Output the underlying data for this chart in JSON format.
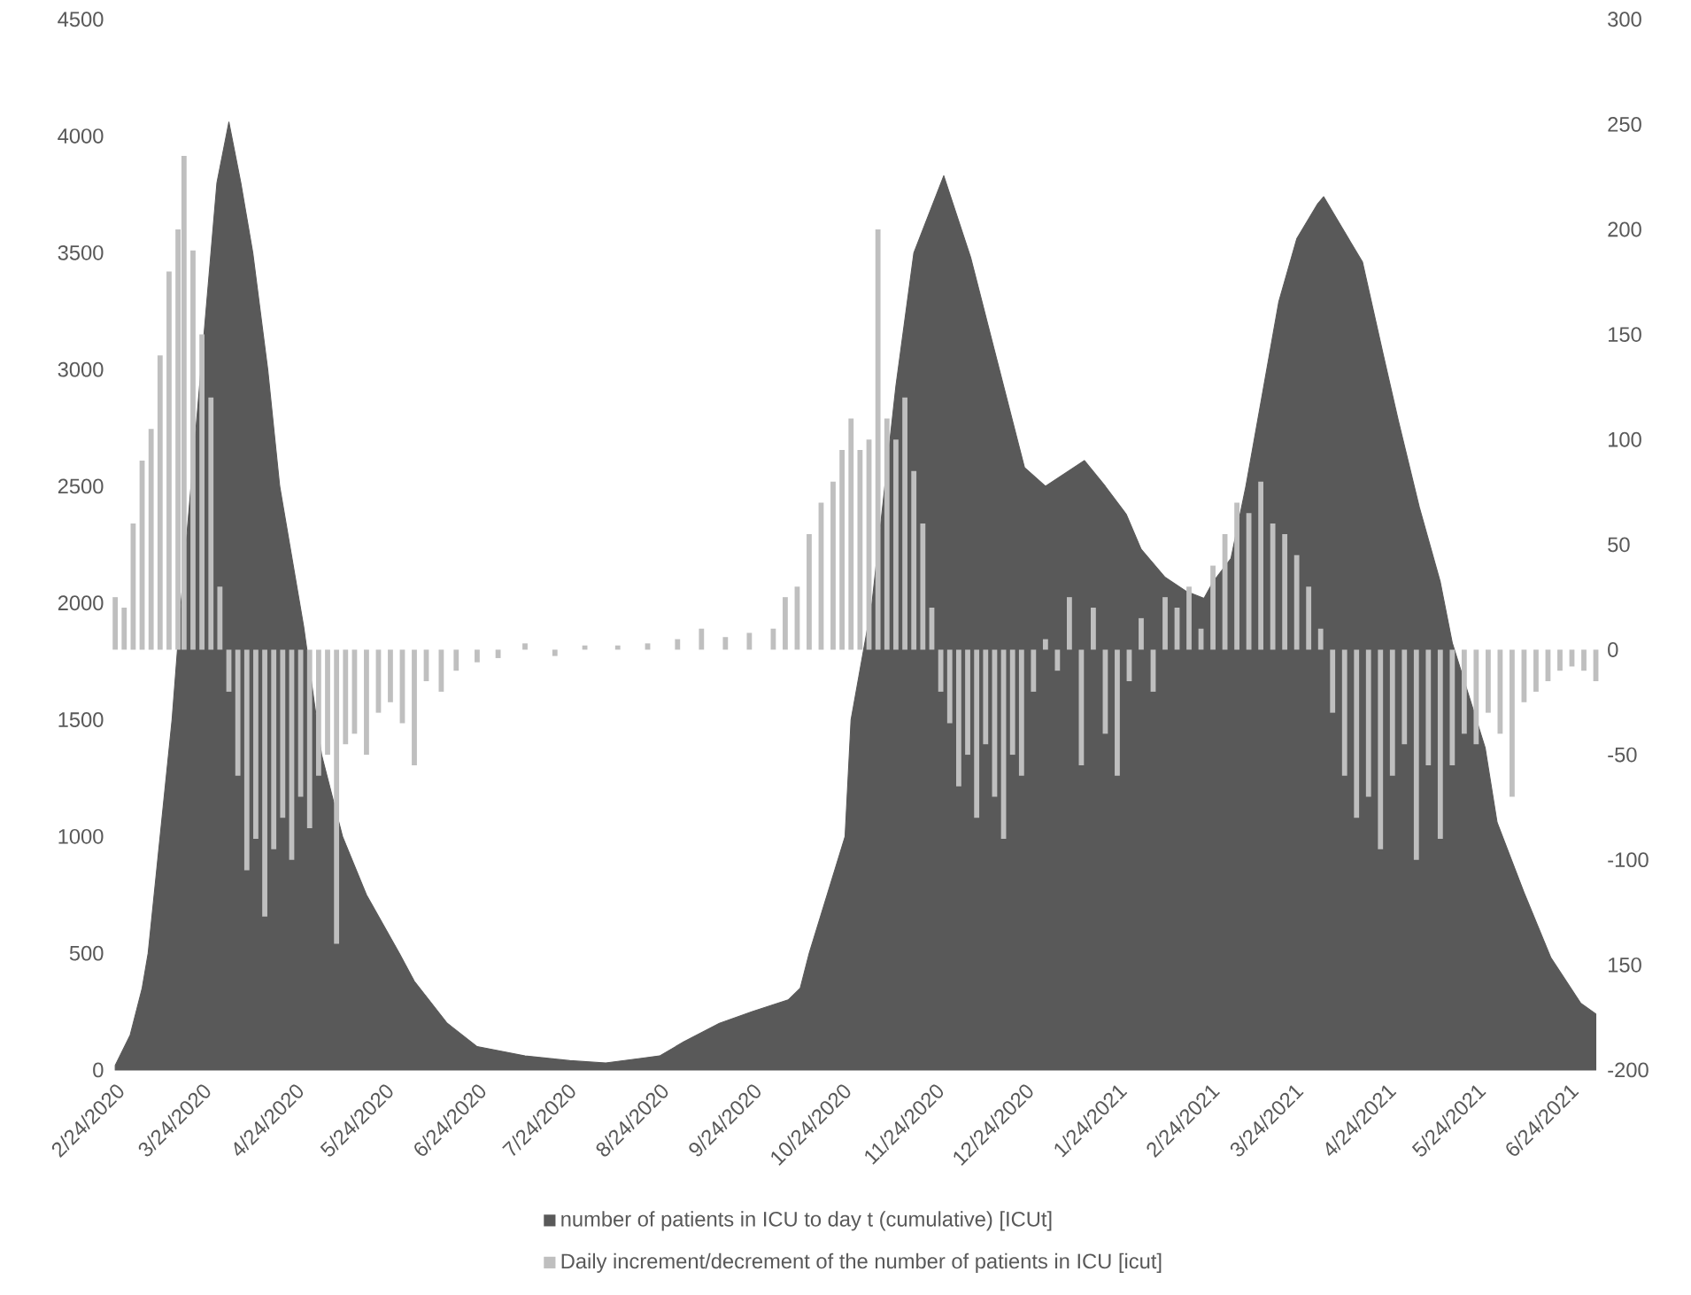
{
  "chart_data": {
    "type": "bar",
    "legend": "bottom",
    "xlim": [
      "2020-02-23",
      "2021-07-04"
    ],
    "xticks": [
      {
        "value": "2020-02-24",
        "label": "2/24/2020"
      },
      {
        "value": "2020-03-24",
        "label": "3/24/2020"
      },
      {
        "value": "2020-04-24",
        "label": "4/24/2020"
      },
      {
        "value": "2020-05-24",
        "label": "5/24/2020"
      },
      {
        "value": "2020-06-24",
        "label": "6/24/2020"
      },
      {
        "value": "2020-07-24",
        "label": "7/24/2020"
      },
      {
        "value": "2020-08-24",
        "label": "8/24/2020"
      },
      {
        "value": "2020-09-24",
        "label": "9/24/2020"
      },
      {
        "value": "2020-10-24",
        "label": "10/24/2020"
      },
      {
        "value": "2020-11-24",
        "label": "11/24/2020"
      },
      {
        "value": "2020-12-24",
        "label": "12/24/2020"
      },
      {
        "value": "2021-01-24",
        "label": "1/24/2021"
      },
      {
        "value": "2021-02-24",
        "label": "2/24/2021"
      },
      {
        "value": "2021-03-24",
        "label": "3/24/2021"
      },
      {
        "value": "2021-04-24",
        "label": "4/24/2021"
      },
      {
        "value": "2021-05-24",
        "label": "5/24/2021"
      },
      {
        "value": "2021-06-24",
        "label": "6/24/2021"
      }
    ],
    "ylim": [
      0,
      4500
    ],
    "yticks": [
      0,
      500,
      1000,
      1500,
      2000,
      2500,
      3000,
      3500,
      4000,
      4500
    ],
    "y2lim": [
      -200,
      300
    ],
    "y2ticks": [
      -200,
      {
        "value": -150,
        "label": "150"
      },
      -100,
      -50,
      0,
      50,
      100,
      150,
      200,
      250,
      300
    ],
    "series": [
      {
        "name": "number of patients in ICU to day t (cumulative) [ICUt]",
        "type": "area",
        "color": "#595959",
        "x": [
          "2020-02-24",
          "2020-02-29",
          "2020-03-04",
          "2020-03-06",
          "2020-03-10",
          "2020-03-14",
          "2020-03-17",
          "2020-03-21",
          "2020-03-25",
          "2020-03-29",
          "2020-04-02",
          "2020-04-06",
          "2020-04-10",
          "2020-04-15",
          "2020-04-19",
          "2020-04-27",
          "2020-05-03",
          "2020-05-10",
          "2020-05-18",
          "2020-05-29",
          "2020-06-03",
          "2020-06-14",
          "2020-06-24",
          "2020-07-10",
          "2020-07-25",
          "2020-08-06",
          "2020-08-18",
          "2020-08-24",
          "2020-09-01",
          "2020-09-13",
          "2020-09-24",
          "2020-10-06",
          "2020-10-10",
          "2020-10-13",
          "2020-10-19",
          "2020-10-25",
          "2020-10-27",
          "2020-11-03",
          "2020-11-11",
          "2020-11-17",
          "2020-11-27",
          "2020-12-06",
          "2020-12-14",
          "2020-12-20",
          "2020-12-24",
          "2020-12-31",
          "2021-01-13",
          "2021-01-20",
          "2021-01-27",
          "2021-02-01",
          "2021-02-09",
          "2021-02-16",
          "2021-02-22",
          "2021-02-25",
          "2021-03-03",
          "2021-03-08",
          "2021-03-14",
          "2021-03-19",
          "2021-03-25",
          "2021-04-01",
          "2021-04-03",
          "2021-04-16",
          "2021-04-23",
          "2021-04-28",
          "2021-05-05",
          "2021-05-12",
          "2021-05-16",
          "2021-05-27",
          "2021-05-31",
          "2021-06-09",
          "2021-06-18",
          "2021-06-28",
          "2021-07-03"
        ],
        "values": [
          20,
          150,
          350,
          500,
          1000,
          1500,
          2000,
          2600,
          3200,
          3800,
          4060,
          3800,
          3500,
          3000,
          2500,
          1900,
          1350,
          1000,
          750,
          500,
          380,
          200,
          100,
          60,
          40,
          30,
          50,
          60,
          120,
          200,
          250,
          300,
          350,
          500,
          750,
          1000,
          1500,
          2000,
          2930,
          3500,
          3830,
          3480,
          3080,
          2780,
          2580,
          2500,
          2610,
          2500,
          2380,
          2230,
          2110,
          2050,
          2020,
          2090,
          2190,
          2500,
          2930,
          3290,
          3560,
          3710,
          3740,
          3460,
          3060,
          2780,
          2410,
          2090,
          1830,
          1380,
          1060,
          760,
          480,
          285,
          240
        ]
      },
      {
        "name": "Daily increment/decrement of the number of patients in ICU [icut]",
        "axis": "y2",
        "color": "#bfbfbf",
        "x": [
          "2020-02-24",
          "2020-02-27",
          "2020-03-01",
          "2020-03-04",
          "2020-03-07",
          "2020-03-10",
          "2020-03-13",
          "2020-03-16",
          "2020-03-18",
          "2020-03-21",
          "2020-03-24",
          "2020-03-27",
          "2020-03-30",
          "2020-04-02",
          "2020-04-05",
          "2020-04-08",
          "2020-04-11",
          "2020-04-14",
          "2020-04-17",
          "2020-04-20",
          "2020-04-23",
          "2020-04-26",
          "2020-04-29",
          "2020-05-02",
          "2020-05-05",
          "2020-05-08",
          "2020-05-11",
          "2020-05-14",
          "2020-05-18",
          "2020-05-22",
          "2020-05-26",
          "2020-05-30",
          "2020-06-03",
          "2020-06-07",
          "2020-06-12",
          "2020-06-17",
          "2020-06-24",
          "2020-07-01",
          "2020-07-10",
          "2020-07-20",
          "2020-07-30",
          "2020-08-10",
          "2020-08-20",
          "2020-08-30",
          "2020-09-07",
          "2020-09-15",
          "2020-09-23",
          "2020-10-01",
          "2020-10-05",
          "2020-10-09",
          "2020-10-13",
          "2020-10-17",
          "2020-10-21",
          "2020-10-24",
          "2020-10-27",
          "2020-10-30",
          "2020-11-02",
          "2020-11-05",
          "2020-11-08",
          "2020-11-11",
          "2020-11-14",
          "2020-11-17",
          "2020-11-20",
          "2020-11-23",
          "2020-11-26",
          "2020-11-29",
          "2020-12-02",
          "2020-12-05",
          "2020-12-08",
          "2020-12-11",
          "2020-12-14",
          "2020-12-17",
          "2020-12-20",
          "2020-12-23",
          "2020-12-27",
          "2020-12-31",
          "2021-01-04",
          "2021-01-08",
          "2021-01-12",
          "2021-01-16",
          "2021-01-20",
          "2021-01-24",
          "2021-01-28",
          "2021-02-01",
          "2021-02-05",
          "2021-02-09",
          "2021-02-13",
          "2021-02-17",
          "2021-02-21",
          "2021-02-25",
          "2021-03-01",
          "2021-03-05",
          "2021-03-09",
          "2021-03-13",
          "2021-03-17",
          "2021-03-21",
          "2021-03-25",
          "2021-03-29",
          "2021-04-02",
          "2021-04-06",
          "2021-04-10",
          "2021-04-14",
          "2021-04-18",
          "2021-04-22",
          "2021-04-26",
          "2021-04-30",
          "2021-05-04",
          "2021-05-08",
          "2021-05-12",
          "2021-05-16",
          "2021-05-20",
          "2021-05-24",
          "2021-05-28",
          "2021-06-01",
          "2021-06-05",
          "2021-06-09",
          "2021-06-13",
          "2021-06-17",
          "2021-06-21",
          "2021-06-25",
          "2021-06-29",
          "2021-07-03"
        ],
        "values": [
          25,
          20,
          60,
          90,
          105,
          140,
          180,
          200,
          235,
          190,
          150,
          120,
          30,
          -20,
          -60,
          -105,
          -90,
          -127,
          -95,
          -80,
          -100,
          -70,
          -85,
          -60,
          -50,
          -140,
          -45,
          -40,
          -50,
          -30,
          -25,
          -35,
          -55,
          -15,
          -20,
          -10,
          -6,
          -4,
          3,
          -3,
          2,
          2,
          3,
          5,
          10,
          6,
          8,
          10,
          25,
          30,
          55,
          70,
          80,
          95,
          110,
          95,
          100,
          200,
          110,
          100,
          120,
          85,
          60,
          20,
          -20,
          -35,
          -65,
          -50,
          -80,
          -45,
          -70,
          -90,
          -50,
          -60,
          -20,
          5,
          -10,
          25,
          -55,
          20,
          -40,
          -60,
          -15,
          15,
          -20,
          25,
          20,
          30,
          10,
          40,
          55,
          70,
          65,
          80,
          60,
          55,
          45,
          30,
          10,
          -30,
          -60,
          -80,
          -70,
          -95,
          -60,
          -45,
          -100,
          -55,
          -90,
          -55,
          -40,
          -45,
          -30,
          -40,
          -70,
          -25,
          -20,
          -15,
          -10,
          -8,
          -10,
          -15
        ]
      }
    ]
  }
}
